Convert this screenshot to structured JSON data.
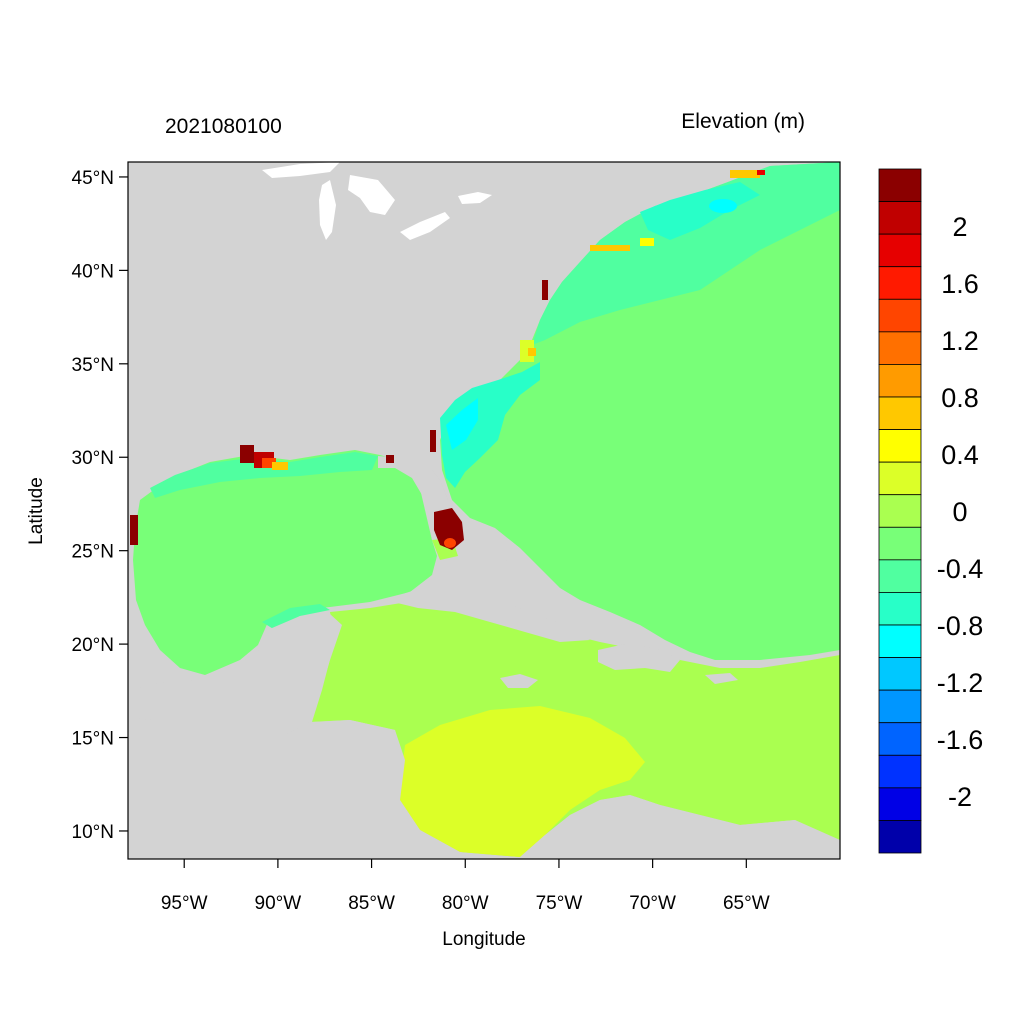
{
  "title_left": "2021080100",
  "title_right": "Elevation (m)",
  "x_axis": {
    "label": "Longitude",
    "ticks": [
      "95°W",
      "90°W",
      "85°W",
      "80°W",
      "75°W",
      "70°W",
      "65°W"
    ],
    "tick_values": [
      -95,
      -90,
      -85,
      -80,
      -75,
      -70,
      -65
    ],
    "range": [
      -98,
      -60
    ]
  },
  "y_axis": {
    "label": "Latitude",
    "ticks": [
      "45°N",
      "40°N",
      "35°N",
      "30°N",
      "25°N",
      "20°N",
      "15°N",
      "10°N"
    ],
    "tick_values": [
      45,
      40,
      35,
      30,
      25,
      20,
      15,
      10
    ],
    "range": [
      8.5,
      45.8
    ]
  },
  "colorbar": {
    "labels": [
      "2",
      "1.6",
      "1.2",
      "0.8",
      "0.4",
      "0",
      "-0.4",
      "-0.8",
      "-1.2",
      "-1.6",
      "-2"
    ],
    "label_values": [
      2,
      1.6,
      1.2,
      0.8,
      0.4,
      0,
      -0.4,
      -0.8,
      -1.2,
      -1.6,
      -2
    ],
    "colors": [
      "#8b0000",
      "#c00000",
      "#e60000",
      "#ff1a00",
      "#ff4500",
      "#ff7000",
      "#ff9b00",
      "#ffc800",
      "#ffff00",
      "#dcff28",
      "#aaff50",
      "#78ff78",
      "#50ffa0",
      "#28ffc8",
      "#00ffff",
      "#00c8ff",
      "#0096ff",
      "#0064ff",
      "#0032ff",
      "#0000e6",
      "#0000aa"
    ]
  },
  "colors": {
    "land": "#d3d3d3",
    "lakes": "#ffffff",
    "open_ocean": "#78ff78",
    "caribbean": "#aaff50",
    "colombian_basin": "#dcff28",
    "shelf_low": "#50ffa0",
    "shelf_lower": "#28ffc8",
    "shelf_lowest": "#00ffff",
    "surge_high": "#8b0000"
  }
}
